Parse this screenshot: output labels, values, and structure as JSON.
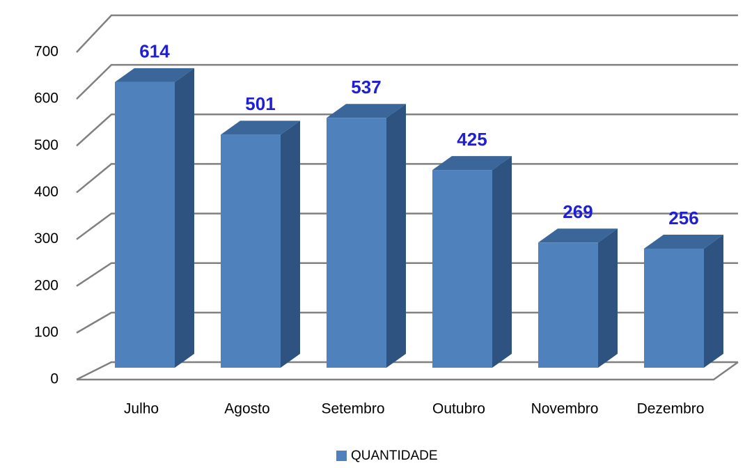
{
  "chart_data": {
    "type": "bar3d",
    "categories": [
      "Julho",
      "Agosto",
      "Setembro",
      "Outubro",
      "Novembro",
      "Dezembro"
    ],
    "series": [
      {
        "name": "QUANTIDADE",
        "color": "#4f81bd",
        "values": [
          614,
          501,
          537,
          425,
          269,
          256
        ]
      }
    ],
    "ylim": [
      0,
      700
    ],
    "yticks": [
      0,
      100,
      200,
      300,
      400,
      500,
      600,
      700
    ],
    "grid": true,
    "legend": "bottom"
  }
}
